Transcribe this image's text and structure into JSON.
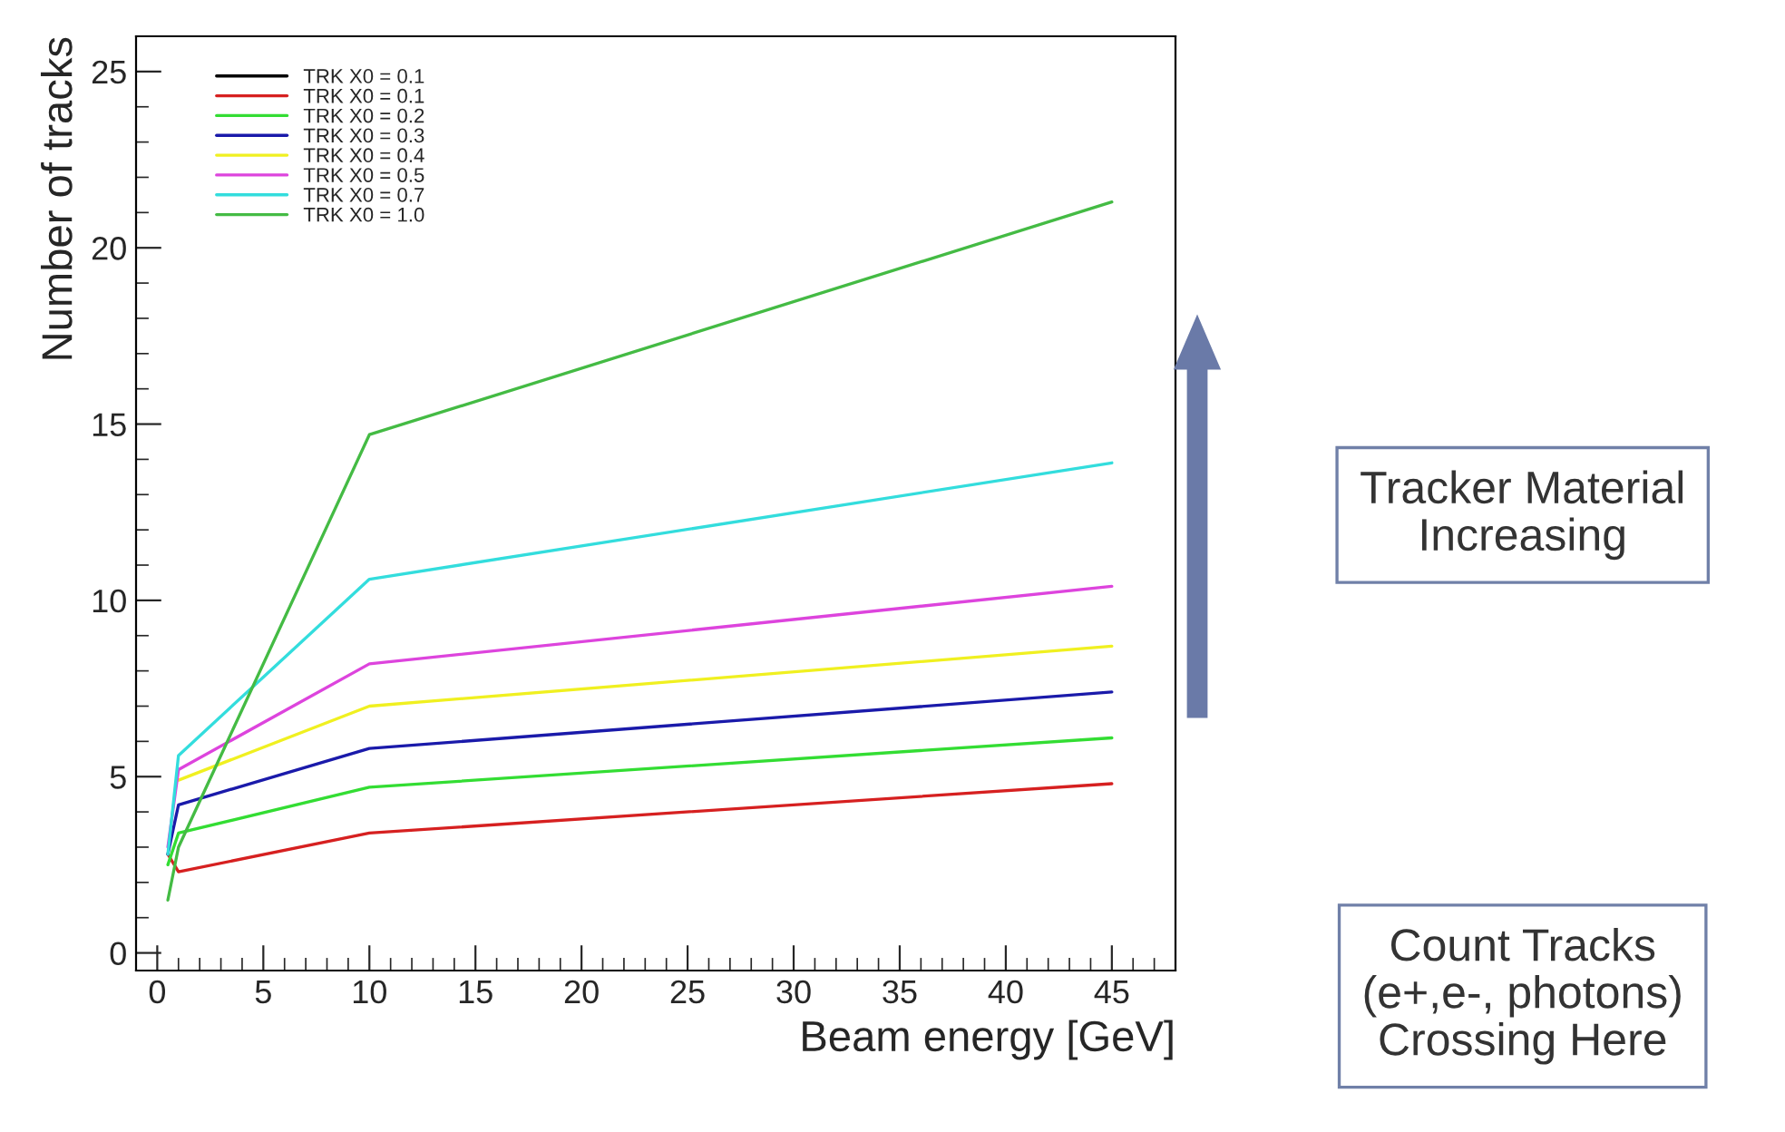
{
  "chart_data": {
    "type": "line",
    "xlabel": "Beam energy [GeV]",
    "ylabel": "Number of tracks",
    "x": [
      0.5,
      1,
      10,
      45
    ],
    "series": [
      {
        "name": "TRK X0 = 0.1",
        "color": "#000000",
        "values": [
          null,
          null,
          null,
          null
        ]
      },
      {
        "name": "TRK X0 = 0.1",
        "color": "#d62020",
        "values": [
          2.8,
          2.3,
          3.4,
          4.8
        ]
      },
      {
        "name": "TRK X0 = 0.2",
        "color": "#33dd33",
        "values": [
          2.5,
          3.4,
          4.7,
          6.1
        ]
      },
      {
        "name": "TRK X0 = 0.3",
        "color": "#1a1aaa",
        "values": [
          2.8,
          4.2,
          5.8,
          7.4
        ]
      },
      {
        "name": "TRK X0 = 0.4",
        "color": "#f0f020",
        "values": [
          null,
          4.9,
          7.0,
          8.7
        ]
      },
      {
        "name": "TRK X0 = 0.5",
        "color": "#dd44dd",
        "values": [
          3.0,
          5.2,
          8.2,
          10.4
        ]
      },
      {
        "name": "TRK X0 = 0.7",
        "color": "#33dddd",
        "values": [
          2.8,
          5.6,
          10.6,
          13.9
        ]
      },
      {
        "name": "TRK X0 = 1.0",
        "color": "#44bb44",
        "values": [
          1.5,
          3.0,
          14.7,
          21.3
        ]
      }
    ],
    "xlim": [
      -1,
      48
    ],
    "xticks": [
      0,
      5,
      10,
      15,
      20,
      25,
      30,
      35,
      40,
      45
    ],
    "ylim": [
      -0.5,
      26
    ],
    "yticks": [
      0,
      5,
      10,
      15,
      20,
      25
    ],
    "grid": false,
    "legend": "top left",
    "marker": "none",
    "line_style": "solid",
    "annotations": [
      "Tracker Material Increasing",
      "Count Tracks (e+,e-, photons) Crossing Here"
    ]
  }
}
